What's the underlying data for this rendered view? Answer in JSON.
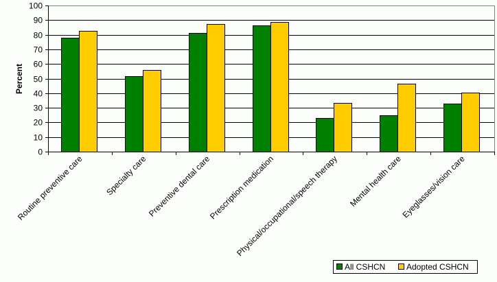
{
  "chart_data": {
    "type": "bar",
    "title": "",
    "xlabel": "",
    "ylabel": "Percent",
    "ylim": [
      0,
      100
    ],
    "yticks": [
      0,
      10,
      20,
      30,
      40,
      50,
      60,
      70,
      80,
      90,
      100
    ],
    "grid": true,
    "legend_position": "bottom-right",
    "categories": [
      "Routine preventive care",
      "Specialty care",
      "Preventive dental care",
      "Prescription medication",
      "Physical/occupational/speech therapy",
      "Mental health care",
      "Eyeglasses/vision care"
    ],
    "series": [
      {
        "name": "All CSHCN",
        "color": "#008000",
        "values": [
          78,
          51.5,
          81,
          86.5,
          23,
          25,
          33
        ]
      },
      {
        "name": "Adopted CSHCN",
        "color": "#ffcc00",
        "values": [
          82.5,
          56,
          87.5,
          88.5,
          33.5,
          46.5,
          40.5
        ]
      }
    ]
  }
}
